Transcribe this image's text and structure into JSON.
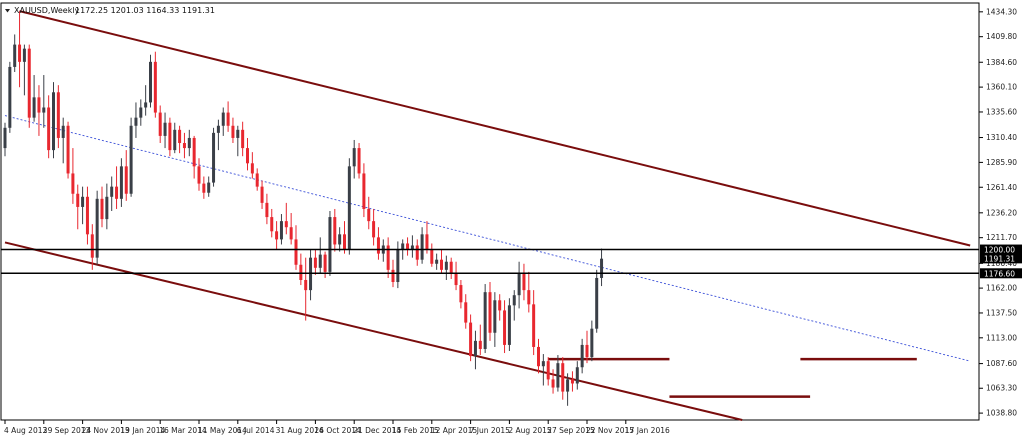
{
  "window": {
    "symbol_label": "XAUUSD,Weekly",
    "ohlc_label": "1172.25 1201.03 1164.33 1191.31"
  },
  "colors": {
    "bull": "#3a3f47",
    "bear": "#e8272f",
    "channel": "#7a0d0d",
    "midline": "#3a4fd8",
    "hline": "#000000",
    "tag_bg": "#000000",
    "tag_text": "#ffffff"
  },
  "chart_data": {
    "type": "candlestick",
    "ylim": [
      1032,
      1443
    ],
    "yticks": [
      1038.8,
      1063.3,
      1087.6,
      1113.0,
      1137.5,
      1162.0,
      1186.4,
      1211.7,
      1236.2,
      1261.4,
      1285.9,
      1310.4,
      1335.6,
      1360.1,
      1384.6,
      1409.8,
      1434.3
    ],
    "ytick_labels": [
      "1038.80",
      "1063.30",
      "1087.60",
      "1113.00",
      "1137.50",
      "1162.00",
      "1186.40",
      "1211.70",
      "1236.20",
      "1261.40",
      "1285.90",
      "1310.40",
      "1335.60",
      "1360.10",
      "1384.60",
      "1409.80",
      "1434.30"
    ],
    "xticks": [
      {
        "bar": 0,
        "label": "4 Aug 2013"
      },
      {
        "bar": 8,
        "label": "29 Sep 2013"
      },
      {
        "bar": 16,
        "label": "24 Nov 2013"
      },
      {
        "bar": 24,
        "label": "19 Jan 2014"
      },
      {
        "bar": 32,
        "label": "16 Mar 2014"
      },
      {
        "bar": 40,
        "label": "11 May 2014"
      },
      {
        "bar": 48,
        "label": "6 Jul 2014"
      },
      {
        "bar": 56,
        "label": "31 Aug 2014"
      },
      {
        "bar": 64,
        "label": "26 Oct 2014"
      },
      {
        "bar": 72,
        "label": "21 Dec 2014"
      },
      {
        "bar": 80,
        "label": "15 Feb 2015"
      },
      {
        "bar": 88,
        "label": "12 Apr 2015"
      },
      {
        "bar": 96,
        "label": "7 Jun 2015"
      },
      {
        "bar": 104,
        "label": "2 Aug 2015"
      },
      {
        "bar": 112,
        "label": "27 Sep 2015"
      },
      {
        "bar": 120,
        "label": "22 Nov 2015"
      },
      {
        "bar": 128,
        "label": "17 Jan 2016"
      }
    ],
    "candles": [
      [
        1300,
        1325,
        1292,
        1320
      ],
      [
        1320,
        1385,
        1315,
        1380
      ],
      [
        1380,
        1412,
        1375,
        1402
      ],
      [
        1402,
        1435,
        1360,
        1385
      ],
      [
        1385,
        1402,
        1352,
        1398
      ],
      [
        1398,
        1402,
        1320,
        1330
      ],
      [
        1330,
        1372,
        1326,
        1350
      ],
      [
        1350,
        1362,
        1312,
        1335
      ],
      [
        1335,
        1372,
        1320,
        1340
      ],
      [
        1340,
        1352,
        1290,
        1298
      ],
      [
        1298,
        1365,
        1290,
        1355
      ],
      [
        1355,
        1362,
        1300,
        1310
      ],
      [
        1310,
        1330,
        1285,
        1322
      ],
      [
        1322,
        1326,
        1270,
        1275
      ],
      [
        1275,
        1300,
        1245,
        1255
      ],
      [
        1255,
        1264,
        1220,
        1242
      ],
      [
        1242,
        1262,
        1225,
        1252
      ],
      [
        1252,
        1262,
        1205,
        1215
      ],
      [
        1215,
        1225,
        1180,
        1192
      ],
      [
        1192,
        1258,
        1185,
        1250
      ],
      [
        1250,
        1262,
        1222,
        1230
      ],
      [
        1230,
        1265,
        1220,
        1252
      ],
      [
        1252,
        1272,
        1238,
        1262
      ],
      [
        1262,
        1282,
        1240,
        1250
      ],
      [
        1250,
        1290,
        1242,
        1282
      ],
      [
        1282,
        1298,
        1248,
        1255
      ],
      [
        1255,
        1330,
        1252,
        1322
      ],
      [
        1322,
        1345,
        1310,
        1330
      ],
      [
        1330,
        1348,
        1322,
        1340
      ],
      [
        1340,
        1362,
        1332,
        1345
      ],
      [
        1345,
        1392,
        1340,
        1385
      ],
      [
        1385,
        1395,
        1330,
        1335
      ],
      [
        1335,
        1342,
        1305,
        1312
      ],
      [
        1312,
        1335,
        1300,
        1325
      ],
      [
        1325,
        1330,
        1292,
        1298
      ],
      [
        1298,
        1325,
        1295,
        1318
      ],
      [
        1318,
        1322,
        1295,
        1305
      ],
      [
        1305,
        1315,
        1290,
        1300
      ],
      [
        1300,
        1318,
        1292,
        1310
      ],
      [
        1310,
        1312,
        1270,
        1282
      ],
      [
        1282,
        1290,
        1258,
        1265
      ],
      [
        1265,
        1272,
        1250,
        1256
      ],
      [
        1256,
        1272,
        1252,
        1266
      ],
      [
        1266,
        1320,
        1262,
        1315
      ],
      [
        1315,
        1328,
        1298,
        1322
      ],
      [
        1322,
        1340,
        1312,
        1335
      ],
      [
        1335,
        1346,
        1316,
        1322
      ],
      [
        1322,
        1330,
        1305,
        1310
      ],
      [
        1310,
        1322,
        1292,
        1318
      ],
      [
        1318,
        1326,
        1292,
        1300
      ],
      [
        1300,
        1310,
        1278,
        1285
      ],
      [
        1285,
        1296,
        1270,
        1275
      ],
      [
        1275,
        1280,
        1258,
        1262
      ],
      [
        1262,
        1268,
        1240,
        1246
      ],
      [
        1246,
        1255,
        1225,
        1232
      ],
      [
        1232,
        1240,
        1212,
        1218
      ],
      [
        1218,
        1228,
        1200,
        1210
      ],
      [
        1210,
        1235,
        1205,
        1228
      ],
      [
        1228,
        1246,
        1215,
        1222
      ],
      [
        1222,
        1236,
        1205,
        1210
      ],
      [
        1210,
        1224,
        1180,
        1185
      ],
      [
        1185,
        1196,
        1165,
        1170
      ],
      [
        1170,
        1192,
        1130,
        1160
      ],
      [
        1160,
        1200,
        1150,
        1192
      ],
      [
        1192,
        1200,
        1175,
        1182
      ],
      [
        1182,
        1212,
        1176,
        1195
      ],
      [
        1195,
        1198,
        1172,
        1178
      ],
      [
        1178,
        1238,
        1174,
        1232
      ],
      [
        1232,
        1240,
        1198,
        1205
      ],
      [
        1205,
        1222,
        1198,
        1215
      ],
      [
        1215,
        1228,
        1196,
        1200
      ],
      [
        1200,
        1290,
        1195,
        1282
      ],
      [
        1282,
        1308,
        1270,
        1300
      ],
      [
        1300,
        1305,
        1270,
        1275
      ],
      [
        1275,
        1285,
        1232,
        1240
      ],
      [
        1240,
        1252,
        1220,
        1228
      ],
      [
        1228,
        1240,
        1204,
        1212
      ],
      [
        1212,
        1222,
        1190,
        1196
      ],
      [
        1196,
        1210,
        1188,
        1204
      ],
      [
        1204,
        1212,
        1172,
        1180
      ],
      [
        1180,
        1190,
        1163,
        1168
      ],
      [
        1168,
        1208,
        1162,
        1200
      ],
      [
        1200,
        1210,
        1190,
        1206
      ],
      [
        1206,
        1212,
        1194,
        1200
      ],
      [
        1200,
        1214,
        1192,
        1204
      ],
      [
        1204,
        1210,
        1184,
        1190
      ],
      [
        1190,
        1222,
        1186,
        1215
      ],
      [
        1215,
        1228,
        1196,
        1200
      ],
      [
        1200,
        1206,
        1183,
        1186
      ],
      [
        1186,
        1196,
        1180,
        1190
      ],
      [
        1190,
        1200,
        1176,
        1180
      ],
      [
        1180,
        1194,
        1170,
        1188
      ],
      [
        1188,
        1192,
        1171,
        1176
      ],
      [
        1176,
        1188,
        1160,
        1165
      ],
      [
        1165,
        1170,
        1142,
        1148
      ],
      [
        1148,
        1156,
        1122,
        1128
      ],
      [
        1128,
        1136,
        1090,
        1095
      ],
      [
        1095,
        1120,
        1082,
        1110
      ],
      [
        1110,
        1126,
        1096,
        1102
      ],
      [
        1102,
        1166,
        1098,
        1158
      ],
      [
        1158,
        1168,
        1110,
        1118
      ],
      [
        1118,
        1158,
        1104,
        1150
      ],
      [
        1150,
        1156,
        1130,
        1140
      ],
      [
        1140,
        1150,
        1098,
        1106
      ],
      [
        1106,
        1152,
        1100,
        1145
      ],
      [
        1145,
        1160,
        1130,
        1155
      ],
      [
        1155,
        1188,
        1142,
        1176
      ],
      [
        1176,
        1186,
        1150,
        1160
      ],
      [
        1160,
        1178,
        1138,
        1146
      ],
      [
        1146,
        1160,
        1096,
        1104
      ],
      [
        1104,
        1112,
        1078,
        1085
      ],
      [
        1085,
        1097,
        1066,
        1090
      ],
      [
        1090,
        1094,
        1066,
        1072
      ],
      [
        1072,
        1082,
        1058,
        1064
      ],
      [
        1064,
        1096,
        1060,
        1088
      ],
      [
        1088,
        1094,
        1052,
        1060
      ],
      [
        1060,
        1078,
        1046,
        1072
      ],
      [
        1072,
        1080,
        1060,
        1068
      ],
      [
        1068,
        1090,
        1062,
        1084
      ],
      [
        1084,
        1112,
        1078,
        1106
      ],
      [
        1106,
        1120,
        1088,
        1094
      ],
      [
        1094,
        1130,
        1090,
        1122
      ],
      [
        1122,
        1180,
        1118,
        1172
      ],
      [
        1172,
        1201,
        1164,
        1191
      ]
    ],
    "overlays": {
      "channel_upper": [
        [
          3,
          1435
        ],
        [
          199,
          1204
        ]
      ],
      "channel_lower": [
        [
          0,
          1207
        ],
        [
          152,
          1032
        ]
      ],
      "midline": [
        [
          0,
          1332
        ],
        [
          199,
          1090
        ]
      ],
      "support_zone_1": [
        [
          112,
          1092
        ],
        [
          137,
          1092
        ]
      ],
      "support_zone_2": [
        [
          164,
          1092
        ],
        [
          188,
          1092
        ]
      ],
      "support_zone_3": [
        [
          137,
          1055
        ],
        [
          166,
          1055
        ]
      ]
    },
    "hlines": [
      {
        "value": 1200.0,
        "label": "1200.00"
      },
      {
        "value": 1176.6,
        "label": "1176.60"
      }
    ],
    "price_tags": [
      {
        "value": 1200.0,
        "label": "1200.00"
      },
      {
        "value": 1191.31,
        "label": "1191.31"
      },
      {
        "value": 1176.6,
        "label": "1176.60"
      }
    ]
  }
}
